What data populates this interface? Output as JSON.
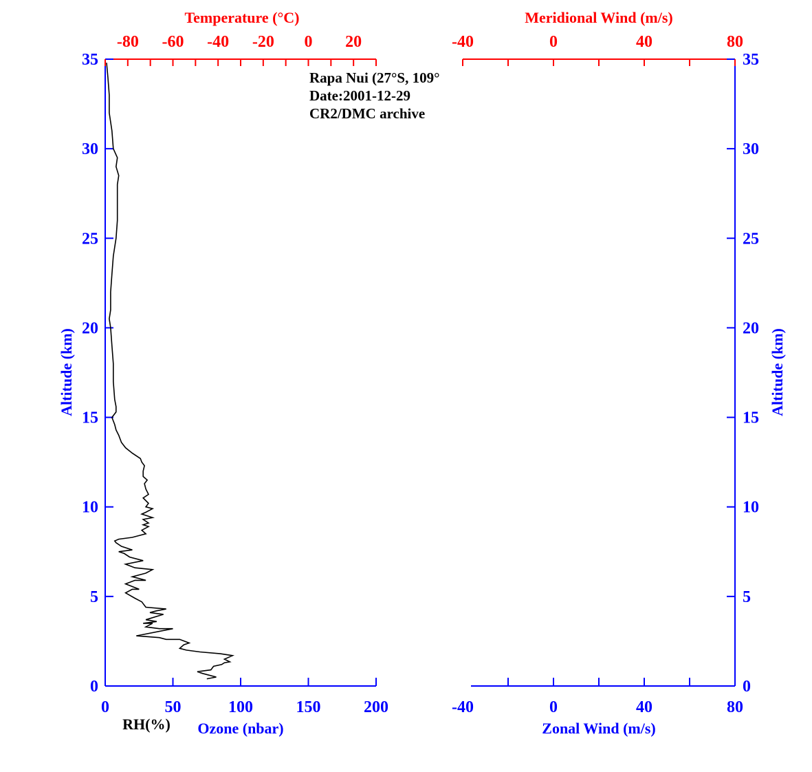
{
  "colors": {
    "blue": "#0000ff",
    "red": "#ff0000",
    "black": "#000000"
  },
  "annotation": {
    "line1": "Rapa Nui (27°S, 109°",
    "line2": "Date:2001-12-29",
    "line3": "CR2/DMC archive"
  },
  "chart_data": [
    {
      "type": "line",
      "axes": {
        "left_y": {
          "label": "Altitude (km)",
          "range": [
            0,
            35
          ],
          "ticks": [
            "0",
            "5",
            "10",
            "15",
            "20",
            "25",
            "30",
            "35"
          ]
        },
        "bottom_x": {
          "label": "Ozone (nbar)",
          "extra_label": "RH(%)",
          "range": [
            0,
            200
          ],
          "ticks": [
            "0",
            "50",
            "100",
            "150",
            "200"
          ]
        },
        "top_x": {
          "label": "Temperature (°C)",
          "range": [
            -90,
            30
          ],
          "ticks": [
            "-80",
            "-60",
            "-40",
            "-20",
            "0",
            "20"
          ]
        }
      },
      "series": [
        {
          "axis": "bottom_x",
          "points": [
            [
              75,
              0.4
            ],
            [
              82,
              0.5
            ],
            [
              72,
              0.7
            ],
            [
              68,
              0.8
            ],
            [
              78,
              0.9
            ],
            [
              80,
              1.1
            ],
            [
              86,
              1.2
            ],
            [
              88,
              1.3
            ],
            [
              92,
              1.35
            ],
            [
              88,
              1.5
            ],
            [
              94,
              1.7
            ],
            [
              85,
              1.8
            ],
            [
              70,
              1.9
            ],
            [
              60,
              2.0
            ],
            [
              55,
              2.1
            ],
            [
              58,
              2.3
            ],
            [
              62,
              2.4
            ],
            [
              55,
              2.6
            ],
            [
              45,
              2.6
            ],
            [
              40,
              2.7
            ],
            [
              23,
              2.8
            ],
            [
              50,
              3.2
            ],
            [
              40,
              3.2
            ],
            [
              30,
              3.3
            ],
            [
              35,
              3.5
            ],
            [
              28,
              3.5
            ],
            [
              38,
              3.6
            ],
            [
              30,
              3.7
            ],
            [
              43,
              4.0
            ],
            [
              33,
              4.1
            ],
            [
              38,
              4.2
            ],
            [
              45,
              4.3
            ],
            [
              30,
              4.4
            ],
            [
              27,
              4.7
            ],
            [
              22,
              4.9
            ],
            [
              15,
              5.2
            ],
            [
              20,
              5.4
            ],
            [
              25,
              5.4
            ],
            [
              15,
              5.7
            ],
            [
              22,
              5.9
            ],
            [
              30,
              5.9
            ],
            [
              20,
              6.1
            ],
            [
              30,
              6.3
            ],
            [
              35,
              6.5
            ],
            [
              22,
              6.6
            ],
            [
              15,
              6.8
            ],
            [
              28,
              7.0
            ],
            [
              18,
              7.2
            ],
            [
              14,
              7.4
            ],
            [
              10,
              7.5
            ],
            [
              20,
              7.6
            ],
            [
              12,
              7.8
            ],
            [
              8,
              8.0
            ],
            [
              7,
              8.1
            ],
            [
              10,
              8.2
            ],
            [
              20,
              8.3
            ],
            [
              25,
              8.4
            ],
            [
              30,
              8.5
            ],
            [
              27,
              8.7
            ],
            [
              32,
              8.9
            ],
            [
              28,
              9.0
            ],
            [
              32,
              9.1
            ],
            [
              28,
              9.3
            ],
            [
              35,
              9.4
            ],
            [
              27,
              9.6
            ],
            [
              30,
              9.7
            ],
            [
              35,
              9.9
            ],
            [
              30,
              10.0
            ],
            [
              32,
              10.2
            ],
            [
              28,
              10.5
            ],
            [
              32,
              10.7
            ],
            [
              30,
              11.0
            ],
            [
              29,
              11.3
            ],
            [
              31,
              11.5
            ],
            [
              28,
              11.7
            ],
            [
              28,
              12.0
            ],
            [
              29,
              12.3
            ],
            [
              27,
              12.5
            ],
            [
              26,
              12.7
            ],
            [
              20,
              13.0
            ],
            [
              15,
              13.3
            ],
            [
              12,
              13.6
            ],
            [
              10,
              14.0
            ],
            [
              8,
              14.3
            ],
            [
              7,
              14.6
            ],
            [
              5,
              15.0
            ],
            [
              8,
              15.3
            ],
            [
              8,
              15.6
            ],
            [
              7,
              16.0
            ],
            [
              6,
              17.0
            ],
            [
              6,
              18.0
            ],
            [
              5,
              19.0
            ],
            [
              4,
              20.0
            ],
            [
              3,
              20.5
            ],
            [
              4,
              21.0
            ],
            [
              4,
              22.0
            ],
            [
              5,
              23.0
            ],
            [
              6,
              24.0
            ],
            [
              8,
              25.0
            ],
            [
              9,
              26.0
            ],
            [
              9,
              27.0
            ],
            [
              9,
              28.0
            ],
            [
              10,
              28.5
            ],
            [
              8,
              29.0
            ],
            [
              9,
              29.5
            ],
            [
              6,
              30.0
            ],
            [
              5,
              31.0
            ],
            [
              3,
              32.0
            ],
            [
              3,
              33.0
            ],
            [
              2,
              34.0
            ],
            [
              1,
              34.8
            ]
          ]
        }
      ]
    },
    {
      "type": "line",
      "axes": {
        "left_y": {
          "range": [
            0,
            35
          ]
        },
        "right_y": {
          "label": "Altitude (km)",
          "range": [
            0,
            35
          ],
          "ticks": [
            "0",
            "5",
            "10",
            "15",
            "20",
            "25",
            "30",
            "35"
          ]
        },
        "bottom_x": {
          "label": "Zonal Wind (m/s)",
          "range": [
            -40,
            80
          ],
          "ticks": [
            "-40",
            "0",
            "40",
            "80"
          ]
        },
        "top_x": {
          "label": "Meridional Wind (m/s)",
          "range": [
            -40,
            80
          ],
          "ticks": [
            "-40",
            "0",
            "40",
            "80"
          ]
        }
      },
      "series": []
    }
  ]
}
